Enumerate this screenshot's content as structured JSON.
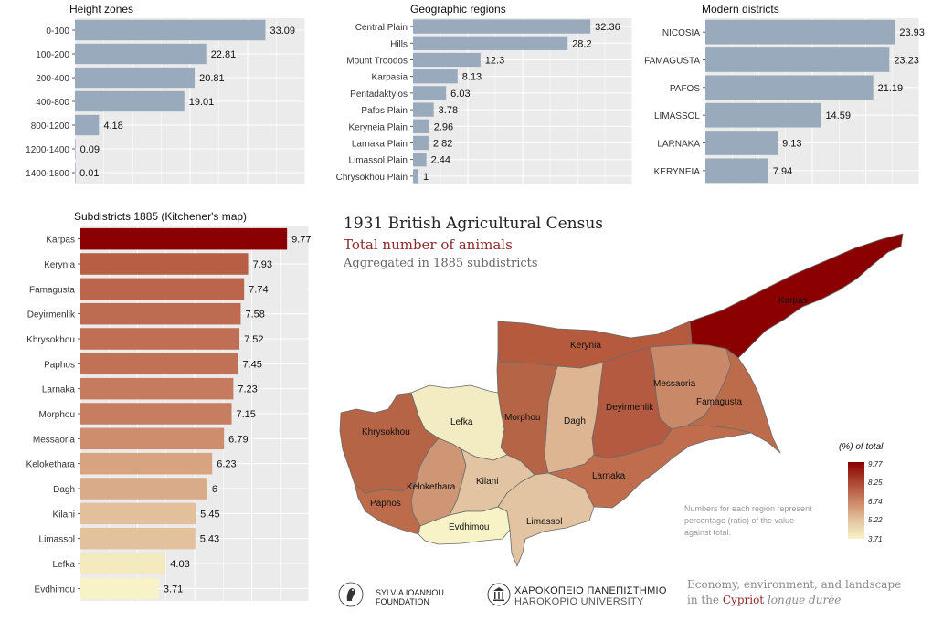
{
  "colors": {
    "bar_gray": "#9aaabd",
    "panel_bg": "#ebebeb",
    "accent_dark": "#8b0000",
    "accent_light": "#f7f3c6",
    "title_red": "#8b2a2a"
  },
  "chart_data": [
    {
      "id": "height",
      "type": "bar",
      "orientation": "horizontal",
      "title": "Height zones",
      "categories": [
        "0-100",
        "100-200",
        "200-400",
        "400-800",
        "800-1200",
        "1200-1400",
        "1400-1800"
      ],
      "values": [
        33.09,
        22.81,
        20.81,
        19.01,
        4.18,
        0.09,
        0.01
      ],
      "xlim": [
        0,
        40
      ],
      "grid": true
    },
    {
      "id": "regions",
      "type": "bar",
      "orientation": "horizontal",
      "title": "Geographic regions",
      "categories": [
        "Central Plain",
        "Hills",
        "Mount Troodos",
        "Karpasia",
        "Pentadaktylos",
        "Pafos Plain",
        "Keryneia Plain",
        "Larnaka Plain",
        "Limassol Plain",
        "Chrysokhou Plain"
      ],
      "values": [
        32.36,
        28.2,
        12.3,
        8.13,
        6.03,
        3.78,
        2.96,
        2.82,
        2.44,
        1
      ],
      "xlim": [
        0,
        40
      ],
      "grid": true
    },
    {
      "id": "districts",
      "type": "bar",
      "orientation": "horizontal",
      "title": "Modern districts",
      "categories": [
        "NICOSIA",
        "FAMAGUSTA",
        "PAFOS",
        "LIMASSOL",
        "LARNAKA",
        "KERYNEIA"
      ],
      "values": [
        23.93,
        23.23,
        21.19,
        14.59,
        9.13,
        7.94
      ],
      "xlim": [
        0,
        27
      ],
      "grid": true
    },
    {
      "id": "subdistricts",
      "type": "bar",
      "orientation": "horizontal",
      "title": "Subdistricts 1885 (Kitchener's map)",
      "categories": [
        "Karpas",
        "Kerynia",
        "Famagusta",
        "Deyirmenlik",
        "Khrysokhou",
        "Paphos",
        "Larnaka",
        "Morphou",
        "Messaoria",
        "Kelokethara",
        "Dagh",
        "Kilani",
        "Limassol",
        "Lefka",
        "Evdhimou"
      ],
      "values": [
        9.77,
        7.93,
        7.74,
        7.58,
        7.52,
        7.45,
        7.23,
        7.15,
        6.79,
        6.23,
        6,
        5.45,
        5.43,
        4.03,
        3.71
      ],
      "xlim": [
        0,
        10.8
      ],
      "grid": true,
      "color_scale": "sequential"
    }
  ],
  "map": {
    "title": "1931 British Agricultural Census",
    "subtitle": "Total number of animals",
    "caption": "Aggregated in 1885 subdistricts",
    "legend": {
      "title": "(%) of total",
      "ticks": [
        "9.77",
        "8.25",
        "6.74",
        "5.22",
        "3.71"
      ]
    },
    "note": "Numbers for each region represent percentage (ratio) of the value against total.",
    "regions": {
      "karpas": "Karpas",
      "kerynia": "Kerynia",
      "messaoria": "Messaoria",
      "famagusta": "Famagusta",
      "deyirmenlik": "Deyirmenlik",
      "dagh": "Dagh",
      "morphou": "Morphou",
      "lefka": "Lefka",
      "khrysokhou": "Khrysokhou",
      "kelokethara": "Kelokethara",
      "kilani": "Kilani",
      "paphos": "Paphos",
      "evdhimou": "Evdhimou",
      "limassol": "Limassol",
      "larnaka": "Larnaka"
    }
  },
  "footer": {
    "org1_line1": "SYLVIA IOANNOU",
    "org1_line2": "FOUNDATION",
    "org2_line1": "ΧΑΡΟΚΟΠΕΙΟ ΠΑΝΕΠΙΣΤΗΜΙΟ",
    "org2_line2": "HAROKOPIO UNIVERSITY",
    "tagline1": "Economy, environment, and landscape",
    "tagline2_prefix": "in the ",
    "tagline2_highlight": "Cypriot",
    "tagline2_suffix": " longue durée"
  }
}
